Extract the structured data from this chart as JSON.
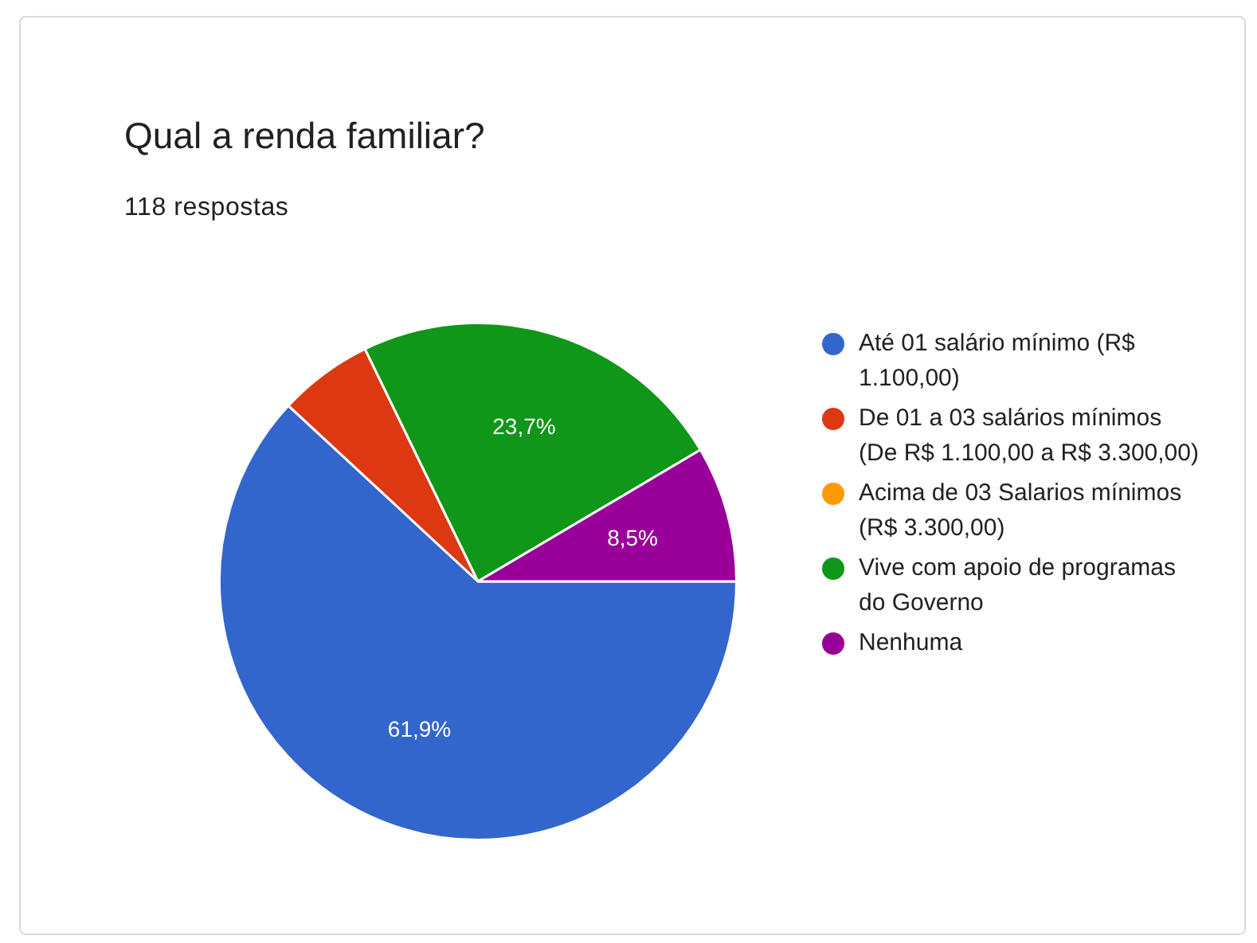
{
  "chart_data": {
    "type": "pie",
    "title": "Qual a renda familiar?",
    "subtitle": "118 respostas",
    "categories": [
      "Até 01 salário mínimo (R$ 1.100,00)",
      "De 01 a 03 salários mínimos (De R$ 1.100,00 a R$ 3.300,00)",
      "Acima de 03 Salarios mínimos (R$ 3.300,00)",
      "Vive com apoio de programas do Governo",
      "Nenhuma"
    ],
    "values": [
      61.9,
      5.9,
      0,
      23.7,
      8.5
    ],
    "value_labels": [
      "61,9%",
      null,
      null,
      "23,7%",
      "8,5%"
    ],
    "colors": [
      "#3366cc",
      "#dc3912",
      "#ff9900",
      "#109618",
      "#990099"
    ],
    "legend": "right"
  }
}
